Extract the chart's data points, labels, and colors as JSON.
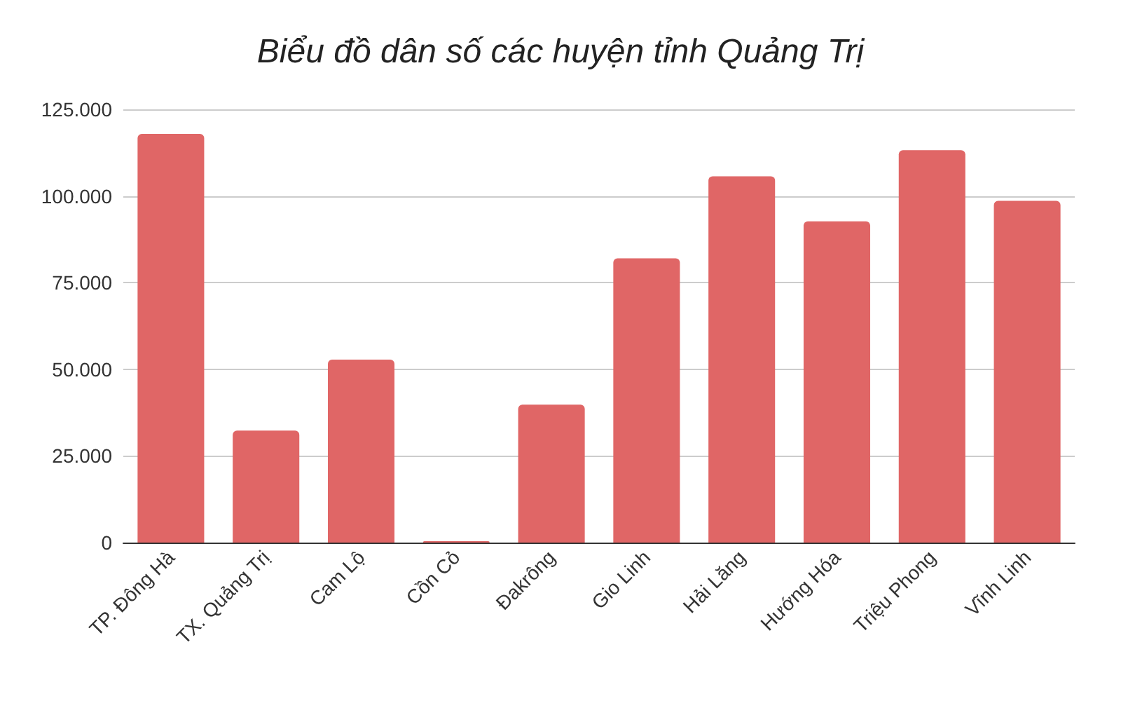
{
  "chart_data": {
    "type": "bar",
    "title": "Biểu đồ dân số các huyện tỉnh Quảng Trị",
    "categories": [
      "TP. Đông Hà",
      "TX. Quảng Trị",
      "Cam Lộ",
      "Cồn Cỏ",
      "Đakrông",
      "Gio Linh",
      "Hải Lăng",
      "Hướng Hóa",
      "Triệu Phong",
      "Vĩnh Linh"
    ],
    "values": [
      117900,
      32300,
      52800,
      400,
      39800,
      82000,
      105700,
      92700,
      113200,
      98600
    ],
    "color": "#e06666",
    "ylim": [
      0,
      125000
    ],
    "yticks": [
      {
        "value": 0,
        "label": "0"
      },
      {
        "value": 25000,
        "label": "25.000"
      },
      {
        "value": 50000,
        "label": "50.000"
      },
      {
        "value": 75000,
        "label": "75.000"
      },
      {
        "value": 100000,
        "label": "100.000"
      },
      {
        "value": 125000,
        "label": "125.000"
      }
    ],
    "grid": true
  }
}
